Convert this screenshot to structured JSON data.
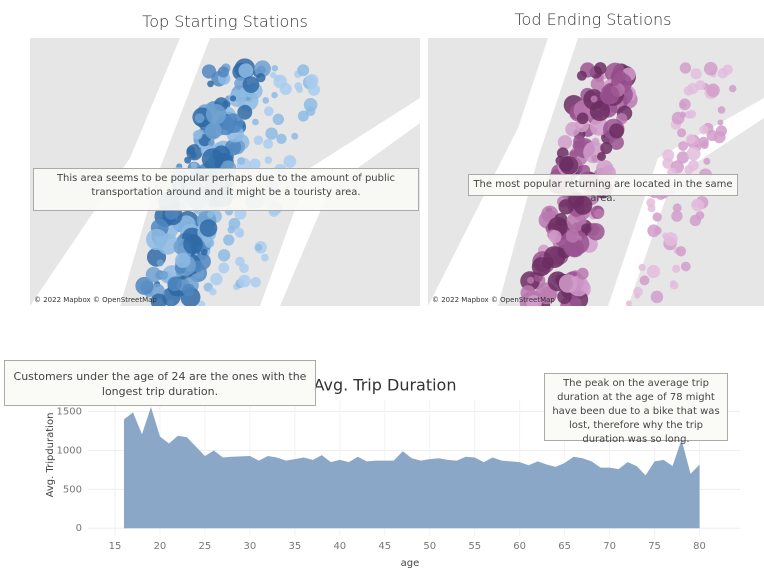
{
  "maps": [
    {
      "title": "Top Starting Stations",
      "annotation": "This area seems to be popular perhaps due to the amount of public transportation around and it might be a touristy area.",
      "attribution": "© 2022 Mapbox © OpenStreetMap"
    },
    {
      "title": "Tod Ending Stations",
      "annotation": "The most popular returning are located in the same area.",
      "attribution": "© 2022 Mapbox © OpenStreetMap"
    }
  ],
  "chart_data": {
    "type": "area",
    "title": "Avg. Trip Duration",
    "x_label": "age",
    "y_label": "Avg. Tripduration",
    "x": [
      16,
      17,
      18,
      19,
      20,
      21,
      22,
      23,
      24,
      25,
      26,
      27,
      28,
      29,
      30,
      31,
      32,
      33,
      34,
      35,
      36,
      37,
      38,
      39,
      40,
      41,
      42,
      43,
      44,
      45,
      46,
      47,
      48,
      49,
      50,
      51,
      52,
      53,
      54,
      55,
      56,
      57,
      58,
      59,
      60,
      61,
      62,
      63,
      64,
      65,
      66,
      67,
      68,
      69,
      70,
      71,
      72,
      73,
      74,
      75,
      76,
      77,
      78,
      79,
      80
    ],
    "values": [
      1400,
      1490,
      1210,
      1560,
      1180,
      1090,
      1190,
      1170,
      1050,
      930,
      1000,
      910,
      920,
      925,
      930,
      870,
      930,
      910,
      870,
      890,
      910,
      880,
      940,
      850,
      880,
      850,
      920,
      860,
      870,
      870,
      870,
      990,
      900,
      870,
      890,
      900,
      880,
      870,
      920,
      910,
      850,
      910,
      870,
      860,
      850,
      810,
      860,
      820,
      790,
      840,
      920,
      900,
      860,
      780,
      780,
      760,
      850,
      800,
      680,
      860,
      880,
      800,
      1140,
      700,
      820
    ],
    "color": "#8aa7c8",
    "xlim": [
      12,
      84.5
    ],
    "xticks": [
      15,
      20,
      25,
      30,
      35,
      40,
      45,
      50,
      55,
      60,
      65,
      70,
      75,
      80
    ],
    "ylim": [
      -100,
      1650
    ],
    "yticks": [
      0,
      500,
      1000,
      1500
    ],
    "grid": true,
    "annotations": [
      "Customers under the age of 24 are the ones with the longest trip duration.",
      "The peak on the average trip duration at the age of 78 might have been due to a bike that was lost, therefore why the trip duration was so long."
    ]
  }
}
